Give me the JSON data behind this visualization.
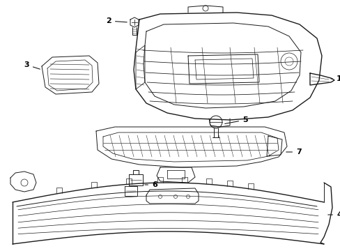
{
  "background_color": "#ffffff",
  "line_color": "#1a1a1a",
  "fig_width": 4.89,
  "fig_height": 3.6,
  "dpi": 100,
  "label_fontsize": 7.0,
  "label_fontsize_num": 8.0
}
